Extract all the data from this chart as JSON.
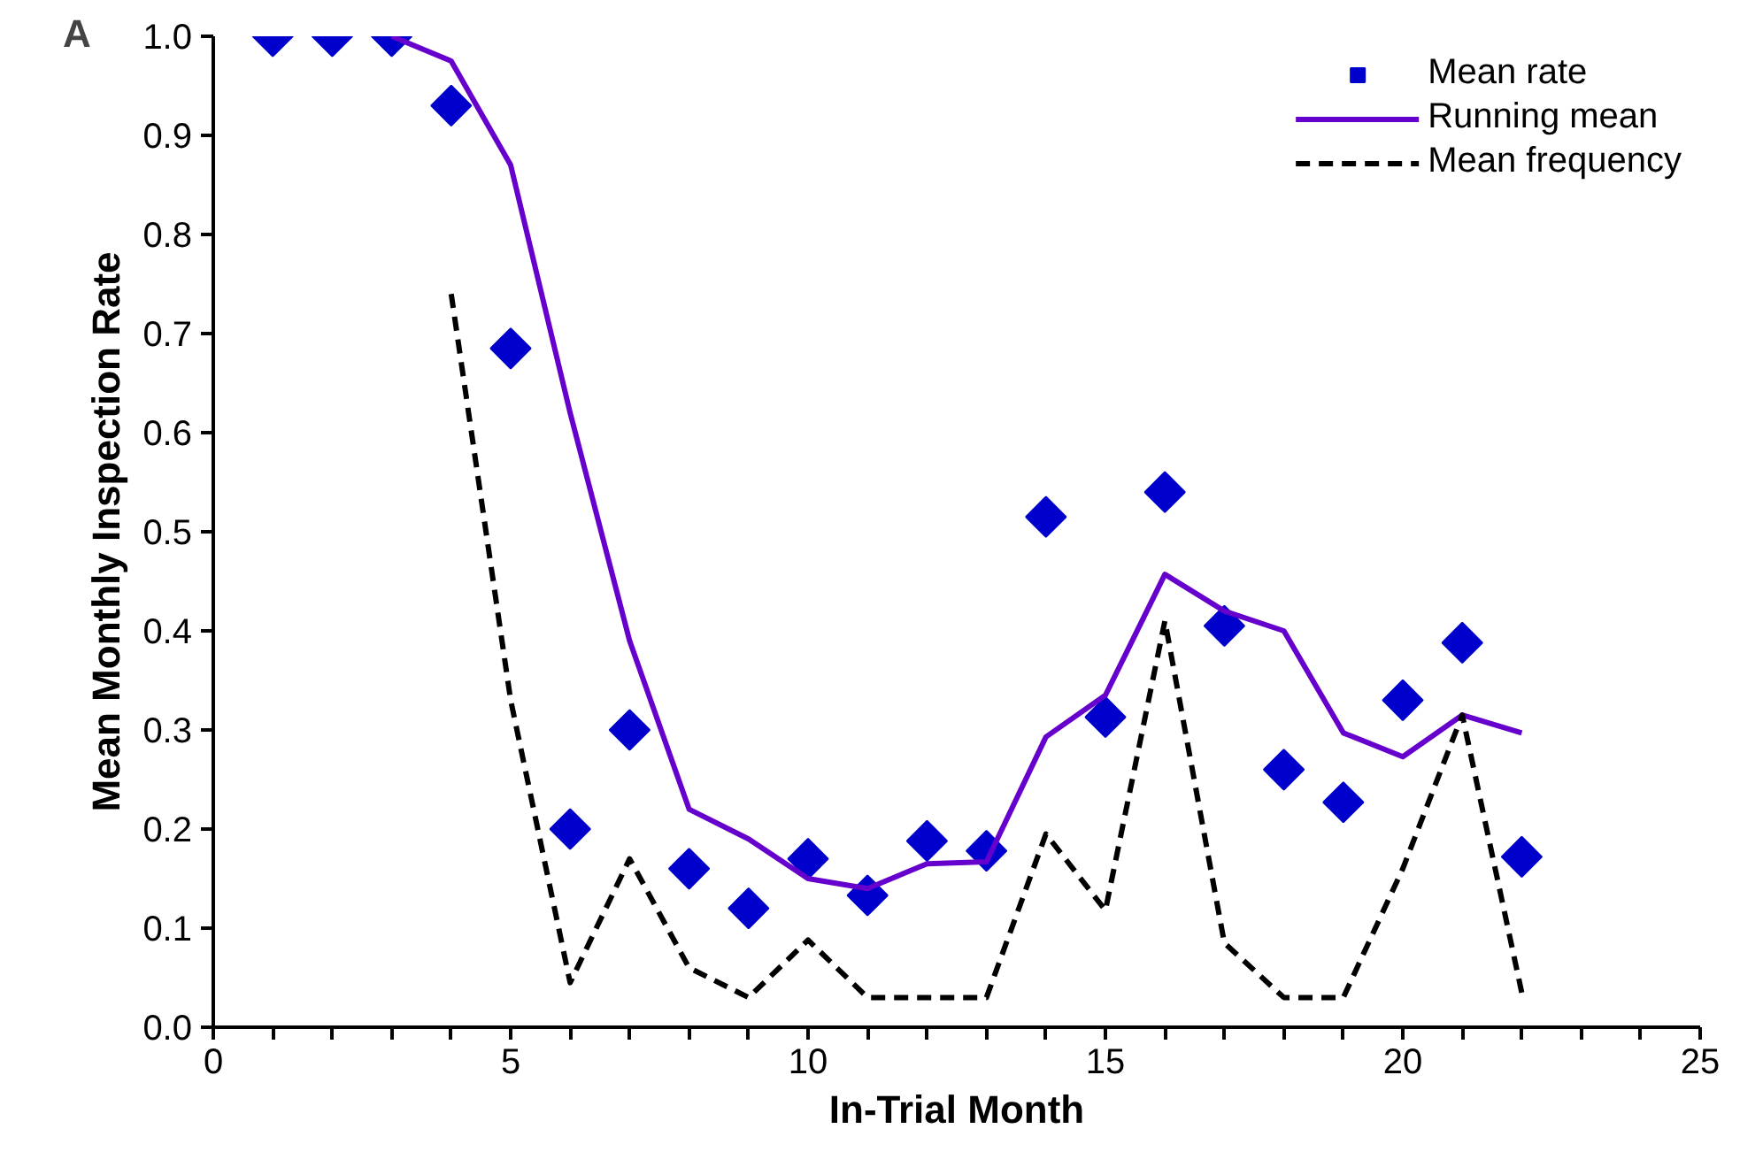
{
  "chart_data": {
    "type": "line",
    "xlabel": "In-Trial Month",
    "ylabel": "Mean Monthly Inspection Rate",
    "annotations": [
      "A"
    ],
    "series": [
      {
        "name": "Mean rate",
        "type": "scatter",
        "marker": "diamond",
        "color": "#0000cc",
        "x": [
          1,
          2,
          3,
          4,
          5,
          6,
          7,
          8,
          9,
          10,
          11,
          12,
          13,
          14,
          15,
          16,
          17,
          18,
          19,
          20,
          21,
          22
        ],
        "values": [
          1.0,
          1.0,
          1.0,
          0.93,
          0.685,
          0.2,
          0.3,
          0.16,
          0.12,
          0.17,
          0.133,
          0.188,
          0.178,
          0.515,
          0.313,
          0.54,
          0.405,
          0.26,
          0.227,
          0.33,
          0.388,
          0.172
        ]
      },
      {
        "name": "Running mean",
        "line_style": "solid",
        "color": "#6600cc",
        "x": [
          3,
          4,
          5,
          6,
          7,
          8,
          9,
          10,
          11,
          12,
          13,
          14,
          15,
          16,
          17,
          18,
          19,
          20,
          21,
          22
        ],
        "values": [
          1.0,
          0.975,
          0.87,
          0.62,
          0.39,
          0.22,
          0.19,
          0.15,
          0.14,
          0.165,
          0.167,
          0.293,
          0.335,
          0.457,
          0.42,
          0.4,
          0.297,
          0.273,
          0.315,
          0.297
        ]
      },
      {
        "name": "Mean frequency",
        "line_style": "dashed",
        "color": "#000000",
        "x": [
          4,
          5,
          6,
          7,
          8,
          9,
          10,
          11,
          12,
          13,
          14,
          15,
          16,
          17,
          18,
          19,
          20,
          21,
          22
        ],
        "values": [
          0.74,
          0.33,
          0.045,
          0.17,
          0.06,
          0.03,
          0.088,
          0.03,
          0.03,
          0.03,
          0.195,
          0.118,
          0.41,
          0.085,
          0.03,
          0.03,
          0.16,
          0.315,
          0.035
        ]
      }
    ],
    "xlim": [
      0,
      25
    ],
    "xticks": [
      0,
      {
        "value": 1,
        "label": null
      },
      {
        "value": 2,
        "label": null
      },
      {
        "value": 3,
        "label": null
      },
      {
        "value": 4,
        "label": null
      },
      5,
      {
        "value": 6,
        "label": null
      },
      {
        "value": 7,
        "label": null
      },
      {
        "value": 8,
        "label": null
      },
      {
        "value": 9,
        "label": null
      },
      10,
      {
        "value": 11,
        "label": null
      },
      {
        "value": 12,
        "label": null
      },
      {
        "value": 13,
        "label": null
      },
      {
        "value": 14,
        "label": null
      },
      15,
      {
        "value": 16,
        "label": null
      },
      {
        "value": 17,
        "label": null
      },
      {
        "value": 18,
        "label": null
      },
      {
        "value": 19,
        "label": null
      },
      20,
      {
        "value": 21,
        "label": null
      },
      {
        "value": 22,
        "label": null
      },
      {
        "value": 23,
        "label": null
      },
      {
        "value": 24,
        "label": null
      },
      25
    ],
    "ylim": [
      0,
      1.0
    ],
    "yticks": [
      {
        "value": 0,
        "label": "0.0"
      },
      {
        "value": 0.1,
        "label": "0.1"
      },
      {
        "value": 0.2,
        "label": "0.2"
      },
      {
        "value": 0.3,
        "label": "0.3"
      },
      {
        "value": 0.4,
        "label": "0.4"
      },
      {
        "value": 0.5,
        "label": "0.5"
      },
      {
        "value": 0.6,
        "label": "0.6"
      },
      {
        "value": 0.7,
        "label": "0.7"
      },
      {
        "value": 0.8,
        "label": "0.8"
      },
      {
        "value": 0.9,
        "label": "0.9"
      },
      {
        "value": 1.0,
        "label": "1.0"
      }
    ],
    "grid": false,
    "legend": "top right"
  }
}
